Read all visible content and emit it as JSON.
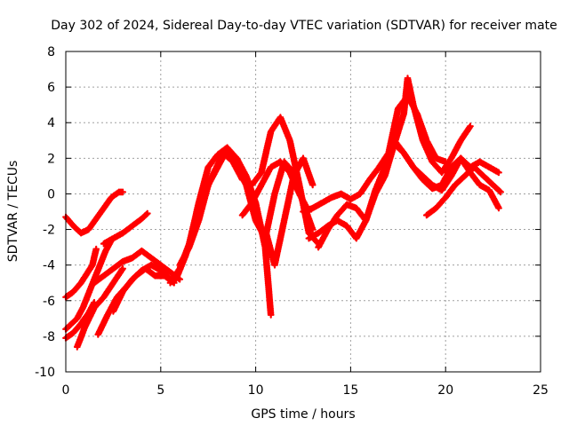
{
  "chart_data": {
    "type": "scatter",
    "title": "Day 302 of 2024, Sidereal Day-to-day VTEC variation (SDTVAR) for receiver mate",
    "xlabel": "GPS time / hours",
    "ylabel": "SDTVAR / TECUs",
    "xlim": [
      0,
      25
    ],
    "ylim": [
      -10,
      8
    ],
    "xticks": [
      0,
      5,
      10,
      15,
      20,
      25
    ],
    "yticks": [
      -10,
      -8,
      -6,
      -4,
      -2,
      0,
      2,
      4,
      6,
      8
    ],
    "grid": true,
    "marker": "+",
    "color": "#ff0000",
    "series": [
      {
        "name": "s1",
        "x": [
          0.0,
          0.4,
          0.8,
          1.2,
          1.6,
          2.0,
          2.4,
          2.8,
          3.0
        ],
        "y": [
          -1.3,
          -1.8,
          -2.2,
          -2.0,
          -1.4,
          -0.8,
          -0.2,
          0.1,
          0.1
        ]
      },
      {
        "name": "s2",
        "x": [
          0.0,
          0.4,
          0.8,
          1.1,
          1.4,
          1.6
        ],
        "y": [
          -5.8,
          -5.5,
          -5.0,
          -4.5,
          -4.0,
          -3.1
        ]
      },
      {
        "name": "s3",
        "x": [
          0.0,
          0.3,
          0.6,
          0.9,
          1.2,
          1.5,
          1.8,
          2.1,
          2.4
        ],
        "y": [
          -7.6,
          -7.3,
          -7.0,
          -6.4,
          -5.6,
          -4.8,
          -4.0,
          -3.2,
          -2.6
        ]
      },
      {
        "name": "s4",
        "x": [
          0.0,
          0.4,
          0.8,
          1.2,
          1.5
        ],
        "y": [
          -8.1,
          -7.8,
          -7.3,
          -6.7,
          -6.1
        ]
      },
      {
        "name": "s5",
        "x": [
          2.0,
          2.5,
          3.0,
          3.5,
          4.0,
          4.3
        ],
        "y": [
          -2.8,
          -2.5,
          -2.2,
          -1.8,
          -1.4,
          -1.1
        ]
      },
      {
        "name": "s6",
        "x": [
          0.6,
          1.0,
          1.5,
          2.0,
          2.5,
          3.0
        ],
        "y": [
          -8.6,
          -7.5,
          -6.4,
          -5.8,
          -5.0,
          -4.2
        ]
      },
      {
        "name": "s7",
        "x": [
          1.5,
          2.0,
          2.5,
          3.0,
          3.5,
          4.0,
          4.5,
          5.0,
          5.5,
          6.0
        ],
        "y": [
          -5.0,
          -4.6,
          -4.2,
          -3.8,
          -3.6,
          -3.2,
          -3.6,
          -4.0,
          -4.4,
          -4.8
        ]
      },
      {
        "name": "s8",
        "x": [
          1.7,
          2.2,
          2.7,
          3.2,
          3.7,
          4.2,
          4.7,
          5.2,
          5.7
        ],
        "y": [
          -7.9,
          -6.8,
          -5.8,
          -5.2,
          -4.6,
          -4.2,
          -4.6,
          -4.6,
          -5.0
        ]
      },
      {
        "name": "s9",
        "x": [
          2.5,
          3.0,
          3.5,
          4.0,
          4.5,
          5.0,
          5.5
        ],
        "y": [
          -6.6,
          -5.5,
          -4.8,
          -4.3,
          -4.0,
          -4.3,
          -4.8
        ]
      },
      {
        "name": "s10",
        "x": [
          5.5,
          6.0,
          6.5,
          7.0,
          7.5,
          8.0,
          8.5,
          9.0,
          9.5,
          10.0,
          10.5,
          10.8
        ],
        "y": [
          -5.0,
          -4.2,
          -2.8,
          -0.5,
          1.5,
          2.2,
          2.6,
          2.0,
          1.0,
          -0.5,
          -3.0,
          -6.8
        ]
      },
      {
        "name": "s11",
        "x": [
          5.8,
          6.3,
          6.8,
          7.3,
          7.8,
          8.3,
          8.8,
          9.3,
          9.8,
          10.3,
          10.8,
          11.3,
          11.8,
          12.3,
          12.8,
          13.3
        ],
        "y": [
          -4.8,
          -3.5,
          -1.8,
          0.0,
          1.2,
          2.3,
          1.8,
          0.8,
          0.5,
          1.2,
          3.5,
          4.3,
          3.0,
          0.5,
          -2.2,
          -2.8
        ]
      },
      {
        "name": "s12",
        "x": [
          6.0,
          6.5,
          7.0,
          7.5,
          8.0,
          8.5,
          9.0,
          9.5,
          10.0,
          10.5,
          11.0,
          11.5,
          12.0,
          12.5,
          13.0
        ],
        "y": [
          -4.0,
          -3.0,
          -1.5,
          0.5,
          1.5,
          2.5,
          1.5,
          0.5,
          -1.5,
          -2.5,
          0.0,
          1.8,
          1.2,
          -0.5,
          -2.0
        ]
      },
      {
        "name": "s13",
        "x": [
          9.3,
          9.8,
          10.3,
          10.8,
          11.3,
          11.8,
          12.3,
          12.8
        ],
        "y": [
          -1.2,
          -0.5,
          0.5,
          1.5,
          1.8,
          1.2,
          0.0,
          -1.0
        ]
      },
      {
        "name": "s14",
        "x": [
          10.5,
          11.0,
          11.5,
          12.0,
          12.5,
          13.0
        ],
        "y": [
          -2.0,
          -4.0,
          -1.5,
          1.0,
          2.0,
          0.5
        ]
      },
      {
        "name": "s15",
        "x": [
          12.5,
          13.0,
          13.5,
          14.0,
          14.5,
          15.0,
          15.5,
          16.0,
          16.5,
          17.0,
          17.5,
          18.0,
          18.5,
          19.0,
          19.5,
          20.0
        ],
        "y": [
          -1.0,
          -0.8,
          -0.5,
          -0.2,
          0.0,
          -0.3,
          0.0,
          0.8,
          1.5,
          2.3,
          4.8,
          5.5,
          4.5,
          3.0,
          2.0,
          1.8
        ]
      },
      {
        "name": "s16",
        "x": [
          12.8,
          13.3,
          13.8,
          14.3,
          14.8,
          15.3,
          15.8,
          16.3,
          16.8,
          17.3,
          17.8,
          18.0,
          18.3,
          18.8,
          19.3,
          19.8,
          20.3,
          20.8,
          21.3
        ],
        "y": [
          -2.5,
          -2.2,
          -1.8,
          -1.5,
          -1.8,
          -2.5,
          -1.5,
          0.0,
          1.0,
          2.8,
          4.5,
          6.5,
          5.0,
          3.0,
          1.8,
          1.2,
          2.0,
          3.0,
          3.8
        ]
      },
      {
        "name": "s17",
        "x": [
          13.3,
          13.8,
          14.3,
          14.8,
          15.3,
          15.8,
          16.3,
          16.8,
          17.3,
          17.8,
          18.3,
          18.8,
          19.3,
          19.8,
          20.3,
          20.8,
          21.3,
          21.8,
          22.3,
          22.8
        ],
        "y": [
          -3.0,
          -2.0,
          -1.2,
          -0.6,
          -0.8,
          -1.5,
          0.2,
          1.5,
          3.0,
          2.3,
          1.5,
          1.0,
          0.5,
          0.2,
          1.0,
          2.0,
          1.5,
          1.8,
          1.5,
          1.2
        ]
      },
      {
        "name": "s18",
        "x": [
          16.8,
          17.3,
          17.8,
          18.3,
          18.8,
          19.3,
          19.8,
          20.3,
          20.8,
          21.3,
          21.8,
          22.3,
          22.8
        ],
        "y": [
          1.8,
          2.8,
          2.3,
          1.5,
          0.8,
          0.3,
          0.5,
          1.5,
          2.0,
          1.2,
          0.5,
          0.2,
          -0.8
        ]
      },
      {
        "name": "s19",
        "x": [
          19.0,
          19.5,
          20.0,
          20.5,
          21.0,
          21.5,
          22.0,
          22.5,
          22.9
        ],
        "y": [
          -1.2,
          -0.8,
          -0.2,
          0.5,
          1.0,
          1.5,
          1.0,
          0.5,
          0.1
        ]
      }
    ]
  }
}
